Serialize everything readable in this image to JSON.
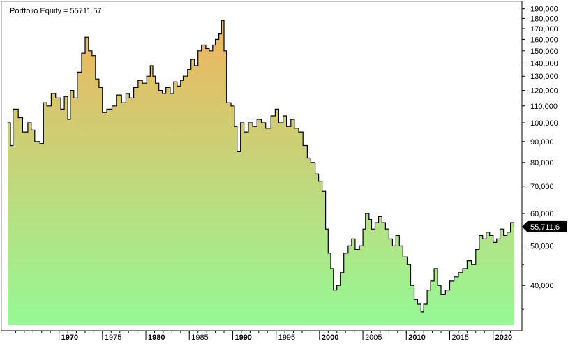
{
  "legend": {
    "title": "Portfolio Equity = 55711.57"
  },
  "chart_data": {
    "type": "area",
    "title": "Portfolio Equity = 55711.57",
    "xlabel": "",
    "ylabel": "",
    "scale": "log",
    "xlim": [
      1964.0,
      2023.0
    ],
    "ylim": [
      32000,
      192000
    ],
    "grid": false,
    "y_ticks": [
      40000,
      50000,
      60000,
      70000,
      80000,
      90000,
      100000,
      110000,
      120000,
      130000,
      140000,
      150000,
      160000,
      170000,
      180000,
      190000
    ],
    "y_tick_labels": [
      "40,000",
      "50,000",
      "60,000",
      "70,000",
      "80,000",
      "90,000",
      "100,000",
      "110,000",
      "120,000",
      "130,000",
      "140,000",
      "150,000",
      "160,000",
      "170,000",
      "180,000",
      "190,000"
    ],
    "x_labels": [
      {
        "x": 1970,
        "label": "1970",
        "bold": true
      },
      {
        "x": 1975,
        "label": "1975",
        "bold": false
      },
      {
        "x": 1980,
        "label": "1980",
        "bold": true
      },
      {
        "x": 1985,
        "label": "1985",
        "bold": false
      },
      {
        "x": 1990,
        "label": "1990",
        "bold": true
      },
      {
        "x": 1995,
        "label": "1995",
        "bold": false
      },
      {
        "x": 2000,
        "label": "2000",
        "bold": true
      },
      {
        "x": 2005,
        "label": "2005",
        "bold": false
      },
      {
        "x": 2010,
        "label": "2010",
        "bold": true
      },
      {
        "x": 2015,
        "label": "2015",
        "bold": false
      },
      {
        "x": 2020,
        "label": "2020",
        "bold": true
      }
    ],
    "last_value": 55711.57,
    "last_value_label": "55,711.6",
    "colors": {
      "line": "#000000",
      "fill_top": "#f0b45e",
      "fill_bottom": "#96f896",
      "marker": "#000000",
      "marker_text": "#ffffff"
    },
    "series": [
      {
        "values": [
          [
            1964.1,
            100000
          ],
          [
            1964.4,
            88000
          ],
          [
            1964.7,
            108000
          ],
          [
            1965.3,
            103000
          ],
          [
            1965.8,
            95000
          ],
          [
            1966.4,
            100000
          ],
          [
            1966.8,
            96000
          ],
          [
            1967.2,
            90000
          ],
          [
            1967.8,
            89000
          ],
          [
            1968.2,
            112000
          ],
          [
            1968.6,
            110000
          ],
          [
            1969.1,
            118000
          ],
          [
            1969.6,
            115000
          ],
          [
            1970.2,
            108000
          ],
          [
            1970.6,
            116000
          ],
          [
            1971.0,
            102000
          ],
          [
            1971.3,
            120000
          ],
          [
            1971.7,
            115000
          ],
          [
            1972.1,
            133000
          ],
          [
            1972.6,
            148000
          ],
          [
            1973.0,
            162000
          ],
          [
            1973.4,
            150000
          ],
          [
            1973.8,
            146000
          ],
          [
            1974.2,
            128000
          ],
          [
            1974.6,
            122000
          ],
          [
            1975.0,
            106000
          ],
          [
            1975.5,
            108000
          ],
          [
            1976.1,
            110000
          ],
          [
            1976.6,
            117000
          ],
          [
            1977.2,
            112000
          ],
          [
            1977.7,
            118000
          ],
          [
            1978.1,
            115000
          ],
          [
            1978.6,
            122000
          ],
          [
            1979.1,
            127000
          ],
          [
            1979.6,
            125000
          ],
          [
            1980.1,
            130000
          ],
          [
            1980.5,
            138000
          ],
          [
            1980.8,
            130000
          ],
          [
            1981.1,
            125000
          ],
          [
            1981.5,
            120000
          ],
          [
            1981.9,
            118000
          ],
          [
            1982.3,
            122000
          ],
          [
            1982.8,
            118000
          ],
          [
            1983.2,
            126000
          ],
          [
            1983.6,
            123000
          ],
          [
            1984.0,
            127000
          ],
          [
            1984.3,
            130000
          ],
          [
            1984.8,
            135000
          ],
          [
            1985.2,
            143000
          ],
          [
            1985.6,
            138000
          ],
          [
            1986.0,
            150000
          ],
          [
            1986.4,
            155000
          ],
          [
            1986.9,
            152000
          ],
          [
            1987.3,
            150000
          ],
          [
            1987.7,
            155000
          ],
          [
            1988.0,
            160000
          ],
          [
            1988.4,
            165000
          ],
          [
            1988.7,
            178000
          ],
          [
            1989.0,
            150000
          ],
          [
            1989.3,
            112000
          ],
          [
            1989.8,
            110000
          ],
          [
            1990.2,
            98000
          ],
          [
            1990.5,
            85000
          ],
          [
            1990.9,
            100000
          ],
          [
            1991.3,
            95000
          ],
          [
            1991.8,
            100000
          ],
          [
            1992.3,
            98000
          ],
          [
            1992.8,
            102000
          ],
          [
            1993.3,
            100000
          ],
          [
            1993.8,
            97000
          ],
          [
            1994.4,
            104000
          ],
          [
            1994.9,
            108000
          ],
          [
            1995.3,
            100000
          ],
          [
            1995.8,
            104000
          ],
          [
            1996.2,
            98000
          ],
          [
            1996.7,
            102000
          ],
          [
            1997.1,
            97000
          ],
          [
            1997.6,
            95000
          ],
          [
            1998.1,
            88000
          ],
          [
            1998.6,
            82000
          ],
          [
            1999.0,
            80000
          ],
          [
            1999.5,
            75000
          ],
          [
            1999.9,
            72000
          ],
          [
            2000.3,
            68000
          ],
          [
            2000.7,
            55000
          ],
          [
            2001.0,
            48000
          ],
          [
            2001.3,
            44000
          ],
          [
            2001.6,
            39000
          ],
          [
            2002.0,
            40000
          ],
          [
            2002.4,
            43000
          ],
          [
            2002.8,
            48000
          ],
          [
            2003.3,
            50000
          ],
          [
            2003.7,
            52000
          ],
          [
            2004.1,
            49000
          ],
          [
            2004.6,
            50000
          ],
          [
            2005.0,
            55000
          ],
          [
            2005.3,
            60000
          ],
          [
            2005.7,
            58000
          ],
          [
            2006.0,
            55000
          ],
          [
            2006.4,
            57000
          ],
          [
            2006.8,
            59000
          ],
          [
            2007.2,
            57000
          ],
          [
            2007.6,
            55000
          ],
          [
            2008.0,
            52000
          ],
          [
            2008.4,
            50000
          ],
          [
            2008.8,
            53000
          ],
          [
            2009.2,
            50000
          ],
          [
            2009.6,
            47000
          ],
          [
            2010.1,
            45000
          ],
          [
            2010.5,
            40000
          ],
          [
            2010.9,
            37000
          ],
          [
            2011.3,
            36000
          ],
          [
            2011.7,
            34500
          ],
          [
            2012.0,
            36000
          ],
          [
            2012.4,
            39000
          ],
          [
            2012.8,
            41000
          ],
          [
            2013.2,
            44000
          ],
          [
            2013.6,
            40000
          ],
          [
            2014.0,
            38000
          ],
          [
            2014.5,
            39000
          ],
          [
            2015.0,
            41000
          ],
          [
            2015.5,
            42000
          ],
          [
            2016.0,
            43000
          ],
          [
            2016.5,
            44000
          ],
          [
            2017.0,
            46000
          ],
          [
            2017.5,
            45000
          ],
          [
            2018.0,
            49000
          ],
          [
            2018.4,
            53000
          ],
          [
            2018.8,
            52000
          ],
          [
            2019.2,
            54000
          ],
          [
            2019.6,
            53000
          ],
          [
            2020.0,
            51000
          ],
          [
            2020.4,
            52000
          ],
          [
            2020.8,
            55000
          ],
          [
            2021.2,
            53000
          ],
          [
            2021.6,
            54000
          ],
          [
            2022.0,
            57000
          ],
          [
            2022.4,
            55711.57
          ]
        ]
      }
    ]
  }
}
